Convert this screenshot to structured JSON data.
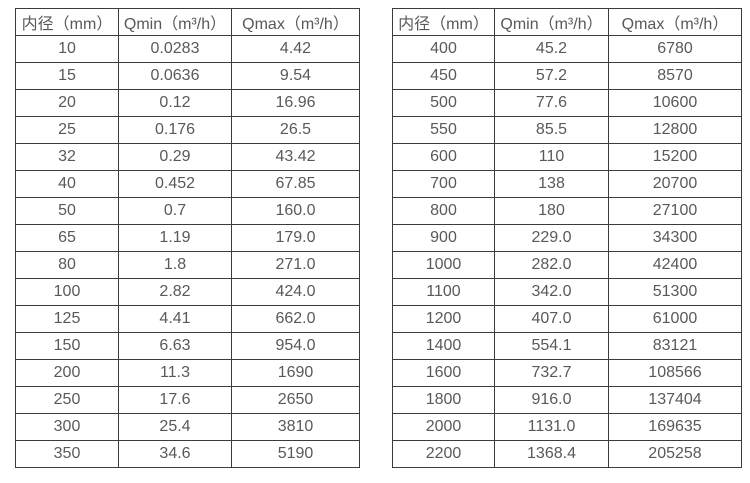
{
  "colors": {
    "text": "#595959",
    "border": "#3b3b3b",
    "background": "#ffffff"
  },
  "tables": [
    {
      "name": "flow-spec-small-diameters",
      "headers": [
        "内径（mm）",
        "Qmin（m³/h）",
        "Qmax（m³/h）"
      ],
      "rows": [
        [
          "10",
          "0.0283",
          "4.42"
        ],
        [
          "15",
          "0.0636",
          "9.54"
        ],
        [
          "20",
          "0.12",
          "16.96"
        ],
        [
          "25",
          "0.176",
          "26.5"
        ],
        [
          "32",
          "0.29",
          "43.42"
        ],
        [
          "40",
          "0.452",
          "67.85"
        ],
        [
          "50",
          "0.7",
          "160.0"
        ],
        [
          "65",
          "1.19",
          "179.0"
        ],
        [
          "80",
          "1.8",
          "271.0"
        ],
        [
          "100",
          "2.82",
          "424.0"
        ],
        [
          "125",
          "4.41",
          "662.0"
        ],
        [
          "150",
          "6.63",
          "954.0"
        ],
        [
          "200",
          "11.3",
          "1690"
        ],
        [
          "250",
          "17.6",
          "2650"
        ],
        [
          "300",
          "25.4",
          "3810"
        ],
        [
          "350",
          "34.6",
          "5190"
        ]
      ]
    },
    {
      "name": "flow-spec-large-diameters",
      "headers": [
        "内径（mm）",
        "Qmin（m³/h）",
        "Qmax（m³/h）"
      ],
      "rows": [
        [
          "400",
          "45.2",
          "6780"
        ],
        [
          "450",
          "57.2",
          "8570"
        ],
        [
          "500",
          "77.6",
          "10600"
        ],
        [
          "550",
          "85.5",
          "12800"
        ],
        [
          "600",
          "110",
          "15200"
        ],
        [
          "700",
          "138",
          "20700"
        ],
        [
          "800",
          "180",
          "27100"
        ],
        [
          "900",
          "229.0",
          "34300"
        ],
        [
          "1000",
          "282.0",
          "42400"
        ],
        [
          "1100",
          "342.0",
          "51300"
        ],
        [
          "1200",
          "407.0",
          "61000"
        ],
        [
          "1400",
          "554.1",
          "83121"
        ],
        [
          "1600",
          "732.7",
          "108566"
        ],
        [
          "1800",
          "916.0",
          "137404"
        ],
        [
          "2000",
          "1131.0",
          "169635"
        ],
        [
          "2200",
          "1368.4",
          "205258"
        ]
      ]
    }
  ]
}
